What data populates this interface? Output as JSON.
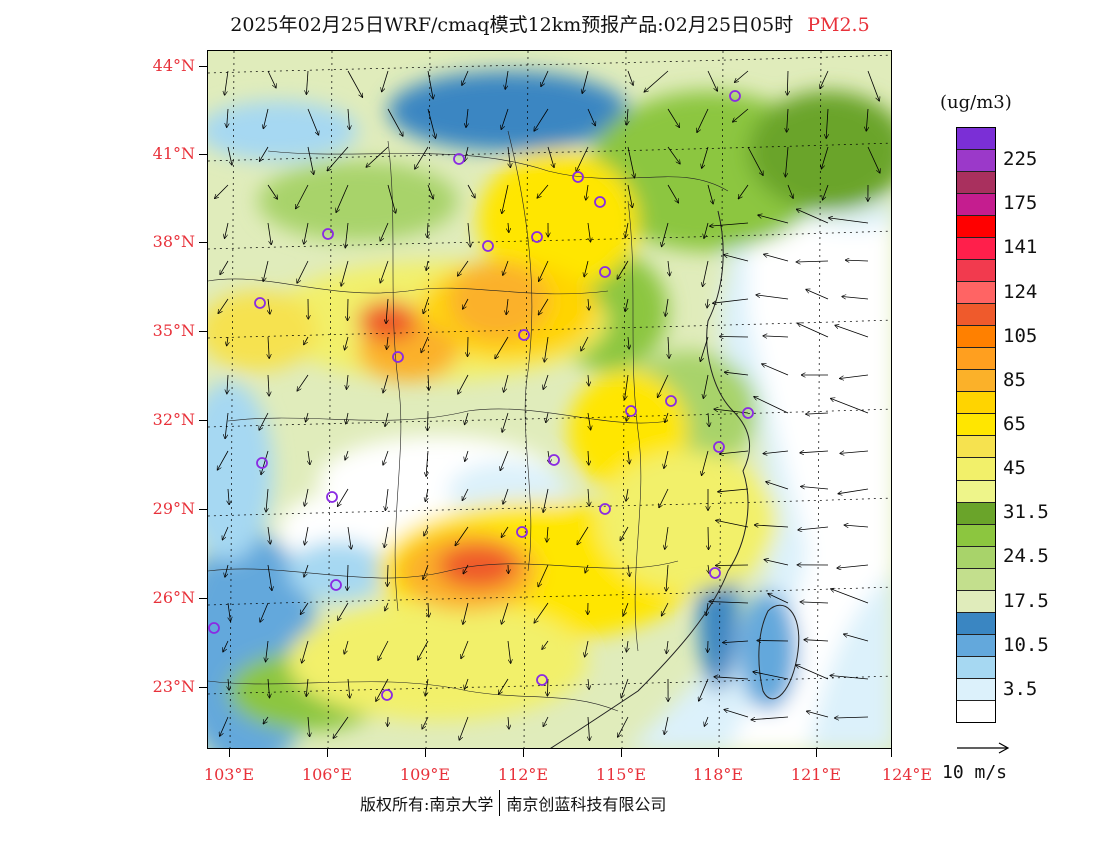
{
  "title": {
    "text": "2025年02月25日WRF/cmaq模式12km预报产品:02月25日05时",
    "species": "PM2.5",
    "species_color": "#e8313a"
  },
  "map": {
    "latitude_labels": [
      "44°N",
      "41°N",
      "38°N",
      "35°N",
      "32°N",
      "29°N",
      "26°N",
      "23°N"
    ],
    "longitude_labels": [
      "103°E",
      "106°E",
      "109°E",
      "112°E",
      "115°E",
      "118°E",
      "121°E",
      "124°E"
    ],
    "axis_label_color": "#e8313a",
    "station_marker_color": "#8a2be2"
  },
  "legend": {
    "unit": "(ug/m3)",
    "bins": [
      {
        "color": "#7b2fd6"
      },
      {
        "color": "#9b39c9",
        "label": "225"
      },
      {
        "color": "#a9305e"
      },
      {
        "color": "#c51d8f",
        "label": "175"
      },
      {
        "color": "#ff0000"
      },
      {
        "color": "#ff1f4b",
        "label": "141"
      },
      {
        "color": "#f23a4e"
      },
      {
        "color": "#ff6464",
        "label": "124"
      },
      {
        "color": "#ef5a2c"
      },
      {
        "color": "#ff8000",
        "label": "105"
      },
      {
        "color": "#ff9f1f"
      },
      {
        "color": "#fbb129",
        "label": "85"
      },
      {
        "color": "#ffd400"
      },
      {
        "color": "#ffe600",
        "label": "65"
      },
      {
        "color": "#f6e24f"
      },
      {
        "color": "#f2f06a",
        "label": "45"
      },
      {
        "color": "#eef58a"
      },
      {
        "color": "#6aa42a",
        "label": "31.5"
      },
      {
        "color": "#8cc63f"
      },
      {
        "color": "#a8d36a",
        "label": "24.5"
      },
      {
        "color": "#c3df8d"
      },
      {
        "color": "#e0ecbb",
        "label": "17.5"
      },
      {
        "color": "#3a86c2"
      },
      {
        "color": "#63a8dc",
        "label": "10.5"
      },
      {
        "color": "#a6d8f2"
      },
      {
        "color": "#dcf1fb",
        "label": "3.5"
      },
      {
        "color": "#ffffff"
      }
    ]
  },
  "wind_reference": {
    "label": "10 m/s"
  },
  "footer": {
    "copyright": "版权所有:南京大学",
    "company": "南京创蓝科技有限公司"
  }
}
